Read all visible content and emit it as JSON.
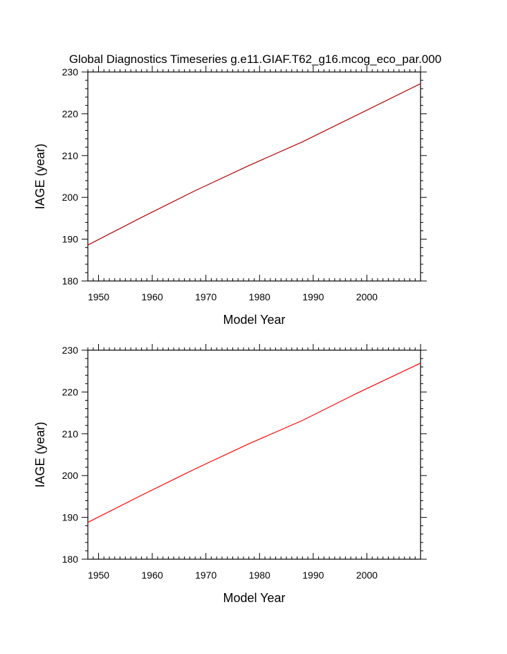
{
  "page_title": "Global Diagnostics Timeseries g.e11.GIAF.T62_g16.mcog_eco_par.000",
  "colors": {
    "background": "#ffffff",
    "axis": "#000000",
    "series_top": "#b00000",
    "series_bottom": "#ff0000"
  },
  "chart_data": [
    {
      "type": "line",
      "title": "Global Diagnostics Timeseries g.e11.GIAF.T62_g16.mcog_eco_par.000",
      "xlabel": "Model Year",
      "ylabel": "IAGE (year)",
      "xlim": [
        1948,
        2010
      ],
      "ylim": [
        180,
        230
      ],
      "xticks": [
        1950,
        1960,
        1970,
        1980,
        1990,
        2000
      ],
      "yticks": [
        180,
        190,
        200,
        210,
        220,
        230
      ],
      "grid": false,
      "series": [
        {
          "color": "#b00000",
          "x": [
            1948,
            1958,
            1968,
            1978,
            1988,
            1998,
            2010
          ],
          "y": [
            188.6,
            195.2,
            201.6,
            207.6,
            213.3,
            219.6,
            227.2
          ]
        }
      ]
    },
    {
      "type": "line",
      "title": "",
      "xlabel": "Model Year",
      "ylabel": "IAGE (year)",
      "xlim": [
        1948,
        2010
      ],
      "ylim": [
        180,
        230
      ],
      "xticks": [
        1950,
        1960,
        1970,
        1980,
        1990,
        2000
      ],
      "yticks": [
        180,
        190,
        200,
        210,
        220,
        230
      ],
      "grid": false,
      "series": [
        {
          "color": "#ff0000",
          "x": [
            1948,
            1958,
            1968,
            1978,
            1988,
            1998,
            2010
          ],
          "y": [
            188.8,
            195.3,
            201.6,
            207.6,
            213.2,
            219.6,
            226.9
          ]
        }
      ]
    }
  ]
}
